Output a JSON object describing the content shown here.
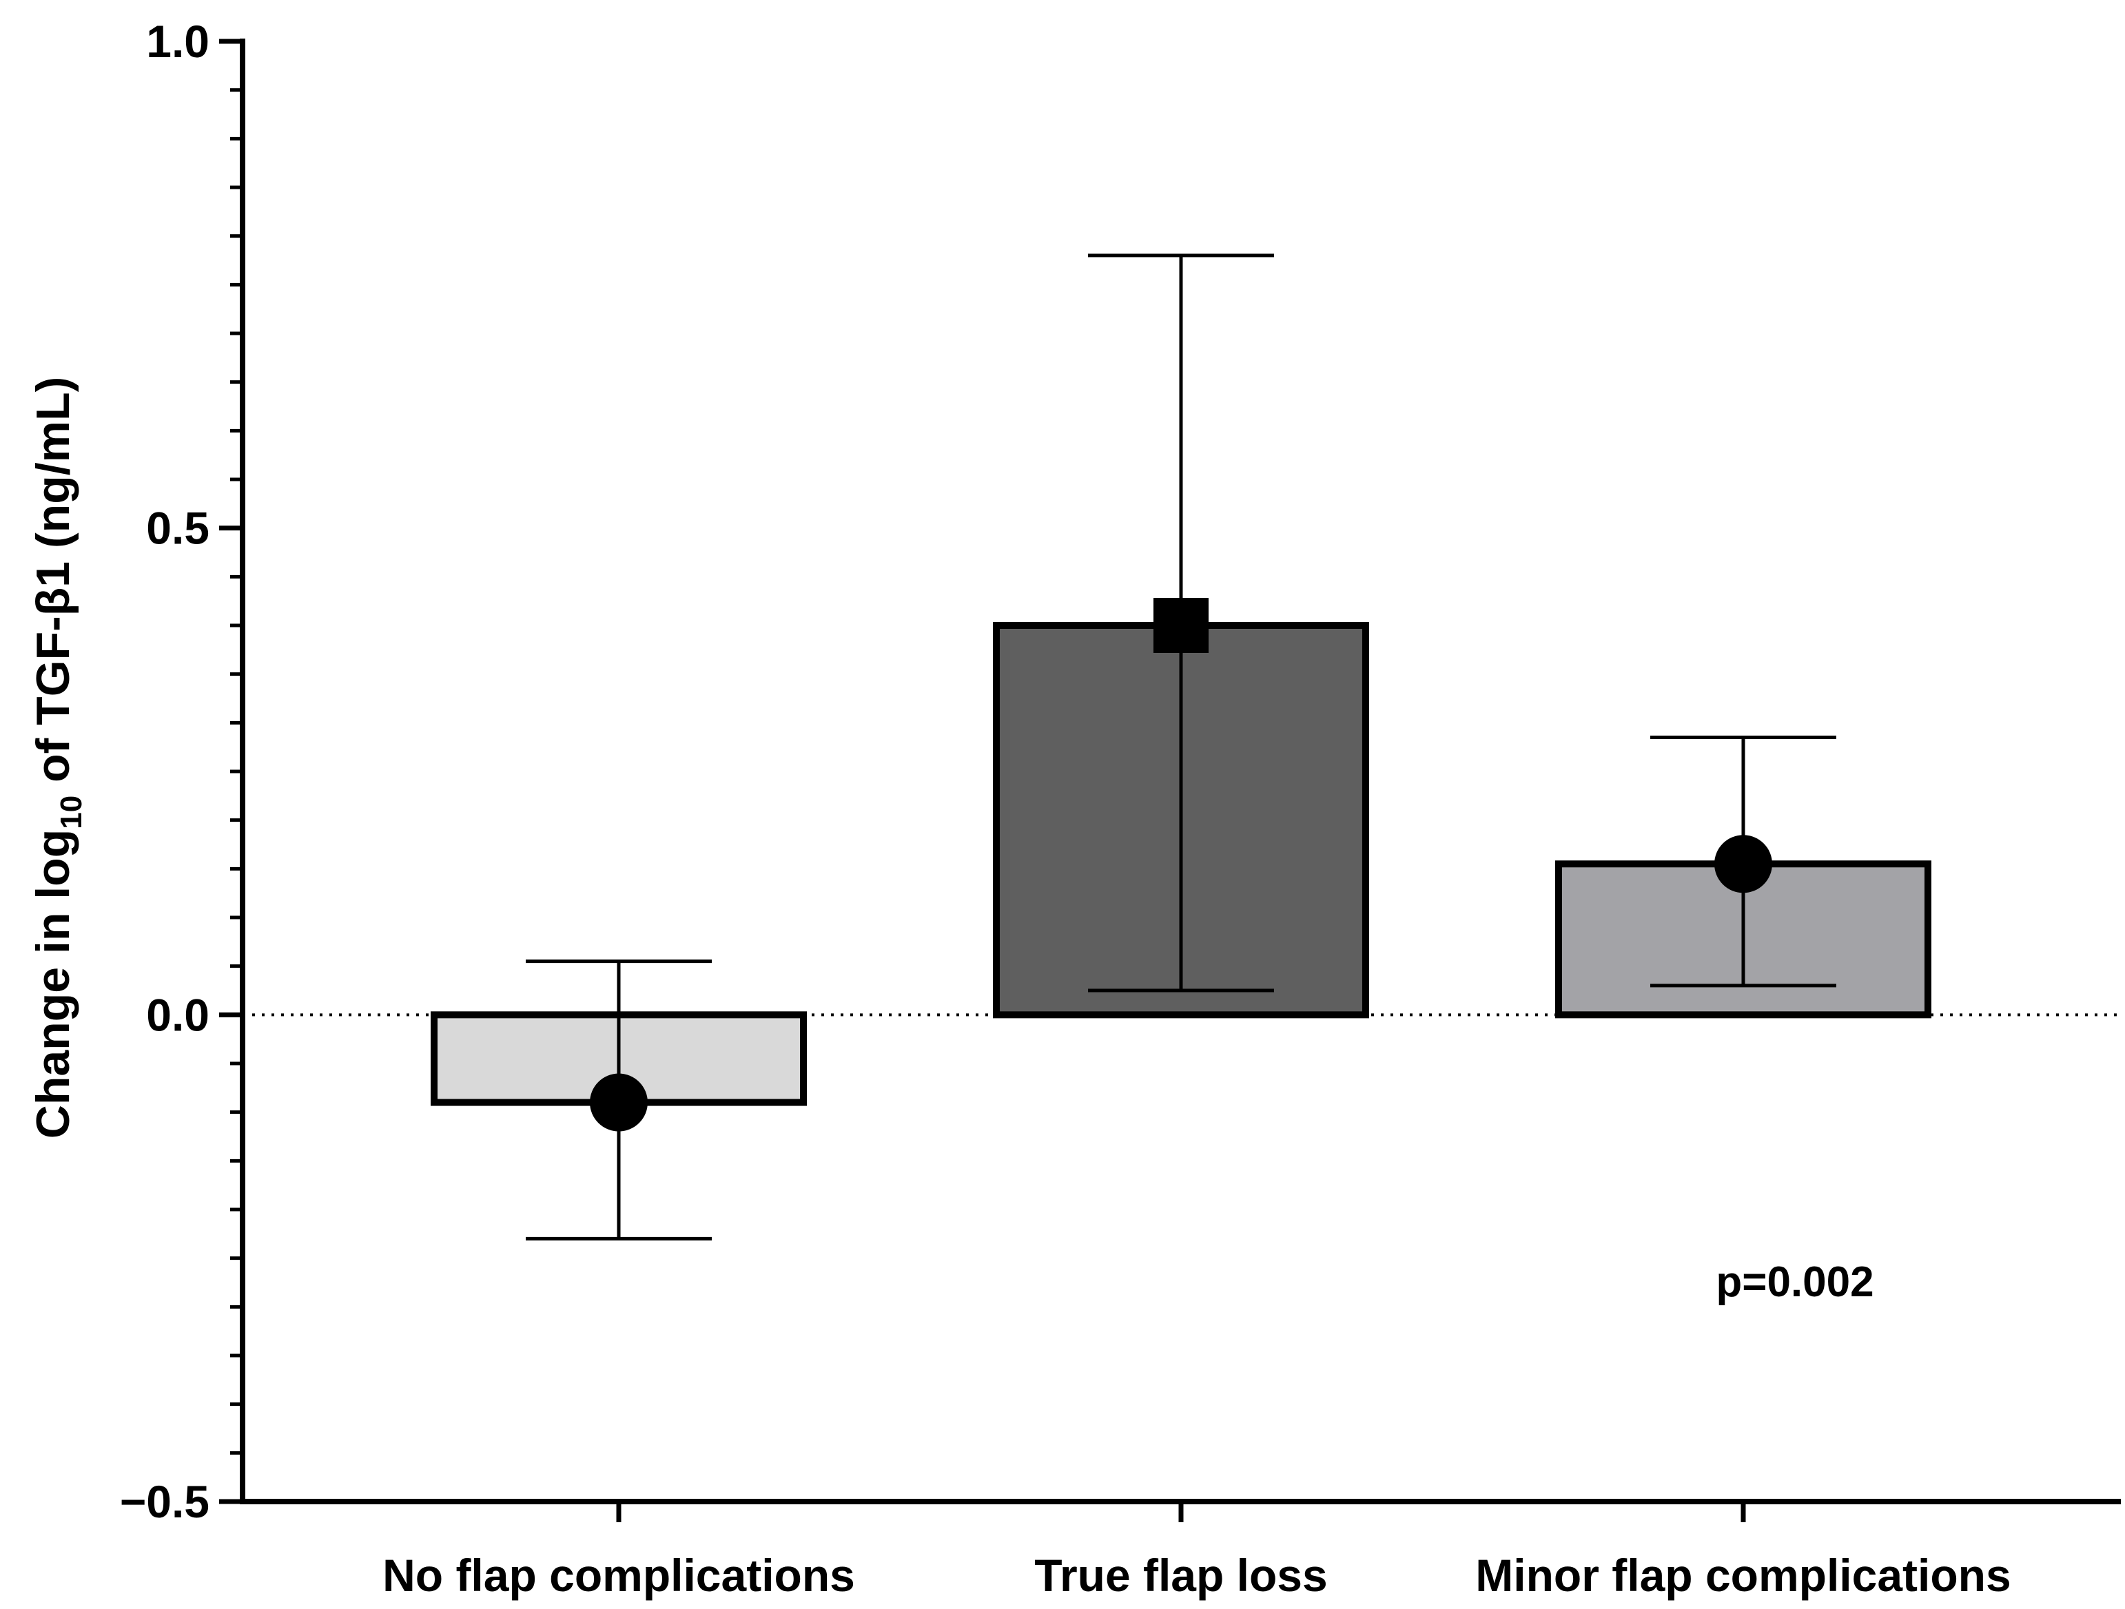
{
  "chart_data": {
    "type": "bar",
    "categories": [
      "No flap complications",
      "True flap loss",
      "Minor flap complications"
    ],
    "values": [
      -0.09,
      0.4,
      0.155
    ],
    "error_bars": [
      {
        "low": -0.23,
        "high": 0.055
      },
      {
        "low": 0.025,
        "high": 0.78
      },
      {
        "low": 0.03,
        "high": 0.285
      }
    ],
    "markers": [
      "circle",
      "square",
      "circle"
    ],
    "bar_colors": [
      "#d9d9d9",
      "#5f5f5f",
      "#a3a3a7"
    ],
    "ylabel_parts": {
      "pre": "Change in log",
      "sub": "10",
      "post": " of TGF-β1 (ng/mL)"
    },
    "ylim": [
      -0.5,
      1.0
    ],
    "yticks": [
      {
        "value": -0.5,
        "label": "−0.5"
      },
      {
        "value": 0.0,
        "label": "0.0"
      },
      {
        "value": 0.5,
        "label": "0.5"
      },
      {
        "value": 1.0,
        "label": "1.0"
      }
    ],
    "minor_tick_step": 0.05,
    "reference_line": 0.0,
    "annotation": "p=0.002",
    "grid": false
  }
}
